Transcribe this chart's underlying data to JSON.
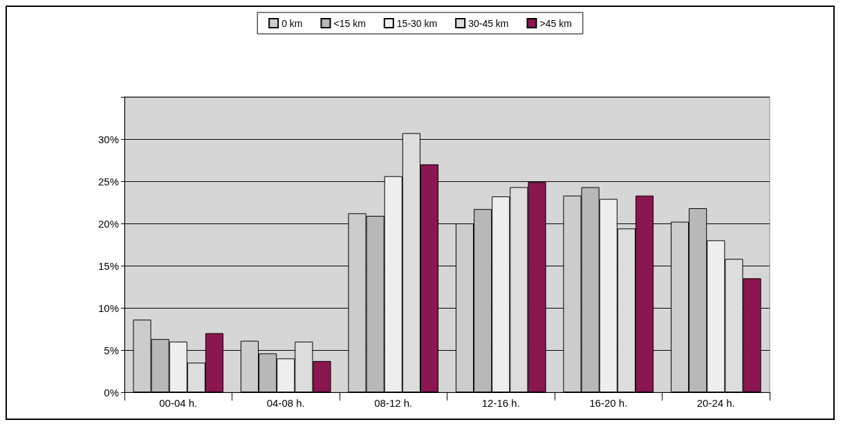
{
  "chart_data": {
    "type": "bar",
    "categories": [
      "00-04 h.",
      "04-08 h.",
      "08-12 h.",
      "12-16 h.",
      "16-20 h.",
      "20-24 h."
    ],
    "series": [
      {
        "name": "0 km",
        "color": "#cccccc",
        "values": [
          8.6,
          6.1,
          21.2,
          20.0,
          23.3,
          20.2
        ]
      },
      {
        "name": "<15 km",
        "color": "#b8b8b8",
        "values": [
          6.3,
          4.6,
          20.9,
          21.7,
          24.3,
          21.8
        ]
      },
      {
        "name": "15-30 km",
        "color": "#eeeeee",
        "values": [
          6.0,
          4.0,
          25.6,
          23.2,
          22.9,
          18.0
        ]
      },
      {
        "name": "30-45 km",
        "color": "#dddddd",
        "values": [
          3.5,
          6.0,
          30.7,
          24.3,
          19.4,
          15.8
        ]
      },
      {
        "name": ">45 km",
        "color": "#8b1750",
        "values": [
          7.0,
          3.7,
          27.0,
          24.9,
          23.3,
          13.5
        ]
      }
    ],
    "ylim": [
      0,
      35
    ],
    "yticks": [
      {
        "value": 0,
        "label": "0%"
      },
      {
        "value": 5,
        "label": "5%"
      },
      {
        "value": 10,
        "label": "10%"
      },
      {
        "value": 15,
        "label": "15%"
      },
      {
        "value": 20,
        "label": "20%"
      },
      {
        "value": 25,
        "label": "25%"
      },
      {
        "value": 30,
        "label": "30%"
      },
      {
        "value": 35,
        "label": null
      }
    ],
    "grid": "y",
    "legend": "top"
  }
}
